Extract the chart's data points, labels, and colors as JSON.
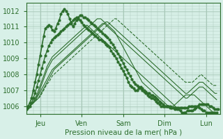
{
  "title": "",
  "xlabel": "Pression niveau de la mer( hPa )",
  "ylabel": "",
  "bg_color": "#d8f0e8",
  "grid_color": "#a8c8b8",
  "line_color": "#2d6e2d",
  "ylim": [
    1005.5,
    1012.5
  ],
  "xlim": [
    0,
    112
  ],
  "xtick_positions": [
    8,
    32,
    56,
    80,
    104
  ],
  "xtick_labels": [
    "Jeu",
    "Ven",
    "Sam",
    "Dim",
    "Lun"
  ],
  "ytick_positions": [
    1006,
    1007,
    1008,
    1009,
    1010,
    1011,
    1012
  ],
  "ytick_labels": [
    "1006",
    "1007",
    "1008",
    "1009",
    "1010",
    "1011",
    "1012"
  ],
  "lines": [
    [
      1005.8,
      1006.0,
      1006.2,
      1006.5,
      1007.0,
      1007.5,
      1008.0,
      1008.6,
      1009.2,
      1009.8,
      1010.4,
      1010.9,
      1011.0,
      1011.1,
      1011.0,
      1010.8,
      1010.7,
      1010.9,
      1011.2,
      1011.4,
      1011.8,
      1012.0,
      1012.1,
      1012.0,
      1011.8,
      1011.5,
      1011.2,
      1011.0,
      1011.2,
      1011.4,
      1011.5,
      1011.4,
      1011.3,
      1011.1,
      1011.0,
      1010.9,
      1010.8,
      1010.7,
      1010.6,
      1010.5,
      1010.4,
      1010.3,
      1010.2,
      1010.2,
      1010.1,
      1010.0,
      1009.9,
      1009.8,
      1009.7,
      1009.5,
      1009.3,
      1009.2,
      1009.0,
      1008.8,
      1008.6,
      1008.4,
      1008.2,
      1008.0,
      1007.8,
      1007.5,
      1007.3,
      1007.2,
      1007.1,
      1007.0,
      1007.0,
      1007.1,
      1007.2,
      1007.1,
      1007.0,
      1006.9,
      1006.8,
      1006.8,
      1006.7,
      1006.7,
      1006.6,
      1006.5,
      1006.4,
      1006.3,
      1006.2,
      1006.1,
      1006.0,
      1006.0,
      1006.0,
      1005.9,
      1005.9,
      1005.9,
      1005.8,
      1005.8,
      1005.8,
      1005.7,
      1005.6,
      1005.6,
      1005.6,
      1005.7,
      1005.7,
      1005.7,
      1005.7,
      1005.8,
      1005.9,
      1006.0,
      1006.1,
      1006.1,
      1006.1,
      1006.1,
      1006.1,
      1006.1,
      1006.0,
      1006.0,
      1005.9,
      1005.8,
      1005.8,
      1005.8
    ],
    [
      1005.8,
      1005.9,
      1006.0,
      1006.2,
      1006.5,
      1006.8,
      1007.2,
      1007.6,
      1008.0,
      1008.4,
      1008.8,
      1009.2,
      1009.5,
      1009.8,
      1010.0,
      1010.2,
      1010.3,
      1010.4,
      1010.5,
      1010.6,
      1010.7,
      1010.8,
      1010.9,
      1011.0,
      1011.1,
      1011.2,
      1011.3,
      1011.4,
      1011.5,
      1011.6,
      1011.6,
      1011.7,
      1011.7,
      1011.6,
      1011.6,
      1011.5,
      1011.4,
      1011.3,
      1011.2,
      1011.1,
      1011.0,
      1010.9,
      1010.8,
      1010.7,
      1010.6,
      1010.5,
      1010.4,
      1010.3,
      1010.2,
      1010.0,
      1009.9,
      1009.7,
      1009.5,
      1009.3,
      1009.1,
      1008.9,
      1008.7,
      1008.5,
      1008.3,
      1008.1,
      1007.9,
      1007.7,
      1007.5,
      1007.4,
      1007.3,
      1007.2,
      1007.1,
      1007.0,
      1006.9,
      1006.8,
      1006.7,
      1006.6,
      1006.5,
      1006.5,
      1006.4,
      1006.3,
      1006.2,
      1006.1,
      1006.0,
      1006.0,
      1006.0,
      1006.0,
      1006.0,
      1006.0,
      1005.9,
      1005.9,
      1005.9,
      1005.9,
      1005.9,
      1005.9,
      1005.9,
      1005.9,
      1005.9,
      1005.9,
      1006.0,
      1006.0,
      1006.0,
      1006.0,
      1006.0,
      1006.0,
      1005.9,
      1005.8,
      1005.7,
      1005.7,
      1005.6,
      1005.6,
      1005.6,
      1005.6,
      1005.6,
      1005.6,
      1005.6
    ],
    [
      1005.8,
      1005.9,
      1006.0,
      1006.1,
      1006.3,
      1006.5,
      1006.7,
      1007.0,
      1007.3,
      1007.6,
      1007.9,
      1008.2,
      1008.5,
      1008.7,
      1008.9,
      1009.1,
      1009.2,
      1009.3,
      1009.4,
      1009.5,
      1009.6,
      1009.7,
      1009.8,
      1009.9,
      1010.0,
      1010.1,
      1010.2,
      1010.3,
      1010.4,
      1010.5,
      1010.6,
      1010.7,
      1010.8,
      1010.9,
      1011.0,
      1011.1,
      1011.0,
      1010.9,
      1010.8,
      1010.7,
      1010.6,
      1010.5,
      1010.4,
      1010.3,
      1010.2,
      1010.1,
      1010.0,
      1009.9,
      1009.8,
      1009.7,
      1009.6,
      1009.5,
      1009.4,
      1009.3,
      1009.2,
      1009.1,
      1009.0,
      1008.9,
      1008.8,
      1008.7,
      1008.6,
      1008.5,
      1008.4,
      1008.3,
      1008.2,
      1008.1,
      1008.0,
      1007.9,
      1007.8,
      1007.7,
      1007.6,
      1007.5,
      1007.4,
      1007.3,
      1007.2,
      1007.1,
      1007.0,
      1006.9,
      1006.8,
      1006.7,
      1006.6,
      1006.5,
      1006.4,
      1006.3,
      1006.2,
      1006.1,
      1006.0,
      1005.9,
      1005.8,
      1005.7,
      1005.6,
      1005.5,
      1005.5,
      1005.5,
      1005.5,
      1005.5,
      1005.5,
      1005.5,
      1005.5,
      1005.5,
      1005.5,
      1005.5,
      1005.5,
      1005.5,
      1005.5,
      1005.5,
      1005.5,
      1005.5,
      1005.5,
      1005.5,
      1005.6
    ],
    [
      1005.8,
      1005.9,
      1006.0,
      1006.1,
      1006.2,
      1006.4,
      1006.6,
      1006.8,
      1007.1,
      1007.4,
      1007.7,
      1008.0,
      1008.3,
      1008.5,
      1008.7,
      1008.9,
      1009.0,
      1009.1,
      1009.2,
      1009.3,
      1009.4,
      1009.5,
      1009.6,
      1009.7,
      1009.8,
      1009.9,
      1010.0,
      1010.1,
      1010.2,
      1010.3,
      1010.4,
      1010.5,
      1010.6,
      1010.7,
      1010.8,
      1010.9,
      1011.0,
      1011.1,
      1011.2,
      1011.3,
      1011.4,
      1011.5,
      1011.5,
      1011.5,
      1011.4,
      1011.3,
      1011.2,
      1011.1,
      1011.0,
      1010.9,
      1010.8,
      1010.7,
      1010.5,
      1010.3,
      1010.1,
      1009.9,
      1009.7,
      1009.5,
      1009.3,
      1009.1,
      1008.9,
      1008.7,
      1008.5,
      1008.3,
      1008.1,
      1007.9,
      1007.7,
      1007.5,
      1007.4,
      1007.3,
      1007.2,
      1007.1,
      1007.0,
      1006.9,
      1006.8,
      1006.7,
      1006.6,
      1006.5,
      1006.4,
      1006.3,
      1006.2,
      1006.1,
      1006.0,
      1006.0,
      1006.0,
      1006.0,
      1006.1,
      1006.2,
      1006.3,
      1006.4,
      1006.5,
      1006.6,
      1006.7,
      1006.7,
      1006.7,
      1006.7,
      1006.7,
      1006.7,
      1006.6,
      1006.5,
      1006.4,
      1006.3,
      1006.2,
      1006.1,
      1006.0,
      1005.9,
      1005.8,
      1005.7,
      1005.6,
      1005.5,
      1005.5
    ],
    [
      1005.8,
      1005.9,
      1006.0,
      1006.1,
      1006.2,
      1006.3,
      1006.5,
      1006.7,
      1006.9,
      1007.1,
      1007.3,
      1007.5,
      1007.7,
      1007.9,
      1008.1,
      1008.3,
      1008.4,
      1008.5,
      1008.6,
      1008.7,
      1008.8,
      1008.9,
      1009.0,
      1009.1,
      1009.2,
      1009.3,
      1009.4,
      1009.5,
      1009.6,
      1009.7,
      1009.8,
      1009.9,
      1010.0,
      1010.1,
      1010.2,
      1010.3,
      1010.4,
      1010.5,
      1010.6,
      1010.7,
      1010.8,
      1010.9,
      1011.0,
      1011.1,
      1011.2,
      1011.2,
      1011.1,
      1011.0,
      1010.9,
      1010.8,
      1010.7,
      1010.6,
      1010.5,
      1010.4,
      1010.3,
      1010.2,
      1010.1,
      1010.0,
      1009.9,
      1009.8,
      1009.7,
      1009.6,
      1009.5,
      1009.4,
      1009.3,
      1009.2,
      1009.1,
      1009.0,
      1008.9,
      1008.8,
      1008.7,
      1008.6,
      1008.5,
      1008.4,
      1008.3,
      1008.2,
      1008.1,
      1008.0,
      1007.9,
      1007.8,
      1007.7,
      1007.6,
      1007.5,
      1007.4,
      1007.3,
      1007.2,
      1007.1,
      1007.0,
      1006.9,
      1006.8,
      1006.7,
      1006.6,
      1006.5,
      1006.5,
      1006.6,
      1006.7,
      1006.8,
      1006.9,
      1007.0,
      1007.1,
      1007.2,
      1007.2,
      1007.2,
      1007.1,
      1007.0,
      1006.9,
      1006.8,
      1006.7,
      1006.6,
      1006.5,
      1006.4
    ],
    [
      1005.8,
      1005.9,
      1006.0,
      1006.1,
      1006.2,
      1006.3,
      1006.4,
      1006.5,
      1006.7,
      1006.9,
      1007.1,
      1007.3,
      1007.5,
      1007.7,
      1007.9,
      1008.1,
      1008.3,
      1008.4,
      1008.5,
      1008.6,
      1008.7,
      1008.8,
      1008.9,
      1009.0,
      1009.1,
      1009.2,
      1009.3,
      1009.4,
      1009.5,
      1009.6,
      1009.7,
      1009.8,
      1009.9,
      1010.0,
      1010.1,
      1010.2,
      1010.3,
      1010.4,
      1010.5,
      1010.6,
      1010.7,
      1010.8,
      1010.9,
      1011.0,
      1011.1,
      1011.2,
      1011.3,
      1011.3,
      1011.2,
      1011.1,
      1011.0,
      1010.9,
      1010.8,
      1010.7,
      1010.6,
      1010.5,
      1010.4,
      1010.3,
      1010.2,
      1010.1,
      1010.0,
      1009.9,
      1009.8,
      1009.7,
      1009.6,
      1009.5,
      1009.4,
      1009.3,
      1009.2,
      1009.1,
      1009.0,
      1008.9,
      1008.8,
      1008.7,
      1008.6,
      1008.5,
      1008.4,
      1008.3,
      1008.2,
      1008.1,
      1008.0,
      1007.9,
      1007.8,
      1007.7,
      1007.6,
      1007.5,
      1007.4,
      1007.3,
      1007.2,
      1007.1,
      1007.0,
      1006.9,
      1006.8,
      1006.8,
      1006.9,
      1007.0,
      1007.1,
      1007.2,
      1007.3,
      1007.4,
      1007.5,
      1007.5,
      1007.5,
      1007.4,
      1007.3,
      1007.2,
      1007.1,
      1007.0,
      1006.9,
      1006.8,
      1006.8
    ],
    [
      1005.8,
      1005.9,
      1006.0,
      1006.1,
      1006.2,
      1006.3,
      1006.4,
      1006.5,
      1006.6,
      1006.8,
      1007.0,
      1007.2,
      1007.4,
      1007.5,
      1007.7,
      1007.9,
      1008.0,
      1008.1,
      1008.2,
      1008.3,
      1008.4,
      1008.5,
      1008.6,
      1008.7,
      1008.8,
      1008.9,
      1009.0,
      1009.1,
      1009.2,
      1009.3,
      1009.4,
      1009.5,
      1009.6,
      1009.7,
      1009.8,
      1009.9,
      1010.0,
      1010.1,
      1010.2,
      1010.3,
      1010.4,
      1010.5,
      1010.6,
      1010.7,
      1010.8,
      1010.9,
      1011.0,
      1011.1,
      1011.2,
      1011.3,
      1011.4,
      1011.5,
      1011.5,
      1011.4,
      1011.3,
      1011.2,
      1011.1,
      1011.0,
      1010.9,
      1010.8,
      1010.7,
      1010.6,
      1010.5,
      1010.4,
      1010.3,
      1010.2,
      1010.1,
      1010.0,
      1009.9,
      1009.8,
      1009.7,
      1009.6,
      1009.5,
      1009.4,
      1009.3,
      1009.2,
      1009.1,
      1009.0,
      1008.9,
      1008.8,
      1008.7,
      1008.6,
      1008.5,
      1008.4,
      1008.3,
      1008.2,
      1008.1,
      1008.0,
      1007.9,
      1007.8,
      1007.7,
      1007.6,
      1007.5,
      1007.5,
      1007.5,
      1007.5,
      1007.5,
      1007.6,
      1007.7,
      1007.8,
      1007.9,
      1008.0,
      1007.9,
      1007.8,
      1007.7,
      1007.6,
      1007.5,
      1007.4,
      1007.3,
      1007.3,
      1007.3
    ]
  ],
  "line_widths": [
    1.2,
    1.0,
    0.8,
    0.8,
    0.8,
    0.8,
    0.8
  ],
  "line_styles": [
    "-",
    "-",
    "-",
    "-",
    "-",
    "-",
    "--"
  ],
  "marker_sizes": [
    2,
    2,
    0,
    0,
    0,
    0,
    0
  ]
}
